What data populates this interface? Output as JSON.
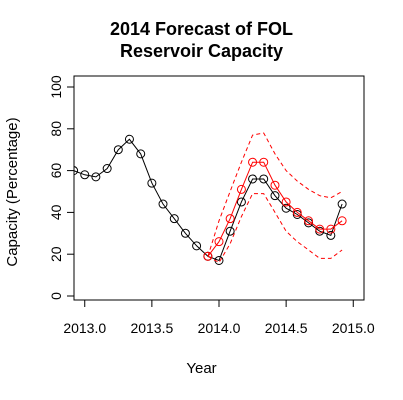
{
  "chart_data": {
    "type": "line",
    "title_lines": [
      "2014 Forecast of FOL",
      "Reservoir Capacity"
    ],
    "xlabel": "Year",
    "ylabel": "Capacity (Percentage)",
    "xlim": [
      2012.92,
      2015.08
    ],
    "ylim": [
      0,
      100
    ],
    "x_ticks": [
      2013.0,
      2013.5,
      2014.0,
      2014.5,
      2015.0
    ],
    "x_tick_labels": [
      "2013.0",
      "2013.5",
      "2014.0",
      "2014.5",
      "2015.0"
    ],
    "y_ticks": [
      0,
      20,
      40,
      60,
      80,
      100
    ],
    "y_tick_labels": [
      "0",
      "20",
      "40",
      "60",
      "80",
      "100"
    ],
    "series": [
      {
        "role": "observed",
        "color": "#000000",
        "style": "line-with-circles",
        "x": [
          2012.917,
          2013.0,
          2013.083,
          2013.167,
          2013.25,
          2013.333,
          2013.417,
          2013.5,
          2013.583,
          2013.667,
          2013.75,
          2013.833,
          2013.917,
          2014.0,
          2014.083,
          2014.167,
          2014.25,
          2014.333,
          2014.417,
          2014.5,
          2014.583,
          2014.667,
          2014.75,
          2014.833,
          2014.917
        ],
        "y": [
          60,
          58,
          57,
          61,
          70,
          75,
          68,
          54,
          44,
          37,
          30,
          24,
          19,
          17,
          31,
          45,
          56,
          56,
          48,
          42,
          39,
          35,
          31,
          29,
          44
        ]
      },
      {
        "role": "forecast",
        "color": "#ff0000",
        "style": "line-with-circles",
        "x": [
          2013.917,
          2014.0,
          2014.083,
          2014.167,
          2014.25,
          2014.333,
          2014.417,
          2014.5,
          2014.583,
          2014.667,
          2014.75,
          2014.833,
          2014.917
        ],
        "y": [
          19,
          26,
          37,
          51,
          64,
          64,
          53,
          45,
          40,
          36,
          32,
          32,
          36
        ]
      },
      {
        "role": "upper-bound",
        "color": "#ff0000",
        "style": "dashed",
        "x": [
          2013.917,
          2014.0,
          2014.083,
          2014.167,
          2014.25,
          2014.333,
          2014.417,
          2014.5,
          2014.583,
          2014.667,
          2014.75,
          2014.833,
          2014.917
        ],
        "y": [
          19,
          36,
          50,
          64,
          77,
          78,
          68,
          60,
          55,
          51,
          48,
          47,
          50
        ]
      },
      {
        "role": "lower-bound",
        "color": "#ff0000",
        "style": "dashed",
        "x": [
          2013.917,
          2014.0,
          2014.083,
          2014.167,
          2014.25,
          2014.333,
          2014.417,
          2014.5,
          2014.583,
          2014.667,
          2014.75,
          2014.833,
          2014.917
        ],
        "y": [
          19,
          16,
          25,
          38,
          49,
          49,
          40,
          31,
          26,
          22,
          18,
          18,
          22
        ]
      }
    ]
  }
}
